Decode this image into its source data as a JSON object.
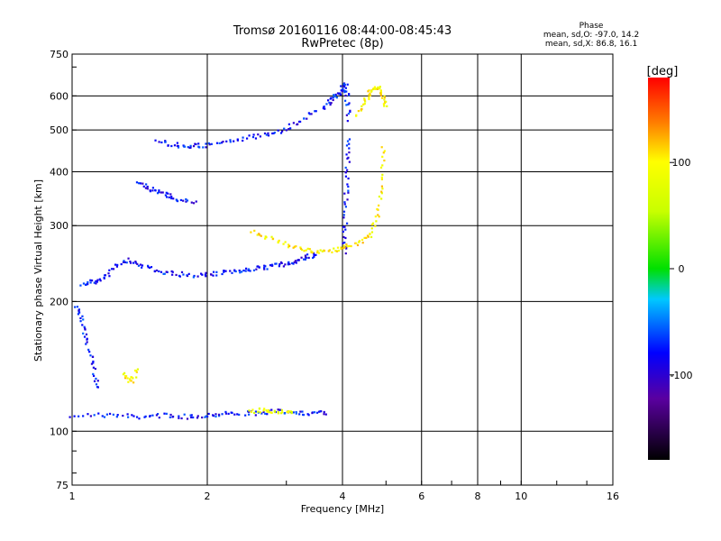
{
  "header": {
    "title_line1": "Tromsø 20160116 08:44:00-08:45:43",
    "title_line2": "RwPretec (8p)",
    "phase_heading": "Phase",
    "phase_o": "mean, sd,O: -97.0, 14.2",
    "phase_x": "mean, sd,X: 86.8, 16.1"
  },
  "colorbar": {
    "label": "[deg]",
    "ticks": [
      "100",
      "0",
      "-100"
    ],
    "tick_values": [
      100,
      0,
      -100
    ],
    "range": [
      -180,
      180
    ]
  },
  "chart_data": {
    "type": "scatter",
    "xlabel": "Frequency [MHz]",
    "ylabel": "Stationary phase Virtual Height [km]",
    "x_scale": "log",
    "y_scale": "log",
    "xlim": [
      1,
      16
    ],
    "ylim": [
      75,
      750
    ],
    "grid": true,
    "x_ticks": [
      1,
      2,
      4,
      6,
      8,
      10,
      16
    ],
    "x_tick_labels": [
      "1",
      "2",
      "4",
      "6",
      "8",
      "10",
      "16"
    ],
    "y_ticks": [
      75,
      100,
      200,
      300,
      400,
      500,
      600,
      750
    ],
    "y_tick_labels": [
      "75",
      "100",
      "200",
      "300",
      "400",
      "500",
      "600",
      "750"
    ],
    "traces": [
      {
        "freq": [
          1.0,
          1.2,
          1.4,
          1.6,
          1.8,
          2.0,
          2.2,
          2.5,
          2.8,
          3.1,
          3.4,
          3.7
        ],
        "height": [
          109,
          109,
          108,
          109,
          108,
          109,
          110,
          110,
          111,
          111,
          110,
          110
        ],
        "phase": -100
      },
      {
        "freq": [
          1.02,
          1.05,
          1.08,
          1.12,
          1.15
        ],
        "height": [
          195,
          180,
          160,
          140,
          125
        ],
        "phase": -95
      },
      {
        "freq": [
          1.05,
          1.12,
          1.2,
          1.3,
          1.4,
          1.55,
          1.7,
          1.9,
          2.1,
          2.3,
          2.5,
          2.7,
          2.9,
          3.1,
          3.3,
          3.5
        ],
        "height": [
          220,
          222,
          230,
          250,
          245,
          235,
          232,
          230,
          232,
          235,
          238,
          240,
          243,
          247,
          252,
          258
        ],
        "phase": -100
      },
      {
        "freq": [
          1.4,
          1.5,
          1.6,
          1.7,
          1.9
        ],
        "height": [
          375,
          365,
          355,
          345,
          340
        ],
        "phase": -100
      },
      {
        "freq": [
          1.55,
          1.7,
          1.85,
          2.0,
          2.3,
          2.6,
          2.9,
          3.2,
          3.5
        ],
        "height": [
          470,
          462,
          458,
          462,
          472,
          485,
          498,
          520,
          560
        ],
        "phase": -100
      },
      {
        "freq": [
          3.6,
          3.8,
          3.95,
          4.05,
          4.1,
          4.12
        ],
        "height": [
          560,
          590,
          610,
          640,
          600,
          520
        ],
        "phase": -100
      },
      {
        "freq": [
          4.05,
          4.05,
          4.08,
          4.1,
          4.12
        ],
        "height": [
          260,
          300,
          360,
          420,
          480
        ],
        "phase": -100
      },
      {
        "freq": [
          2.5,
          2.8,
          3.1,
          3.4,
          3.7,
          4.0,
          4.3,
          4.6,
          4.8,
          4.9,
          4.95
        ],
        "height": [
          290,
          280,
          268,
          262,
          262,
          266,
          272,
          285,
          320,
          380,
          470
        ],
        "phase": 100
      },
      {
        "freq": [
          4.3,
          4.5,
          4.65,
          4.8,
          4.9,
          5.0
        ],
        "height": [
          540,
          590,
          620,
          630,
          600,
          560
        ],
        "phase": 100
      },
      {
        "freq": [
          1.3,
          1.35,
          1.4
        ],
        "height": [
          135,
          130,
          140
        ],
        "phase": 100
      },
      {
        "freq": [
          2.5,
          2.7,
          2.9,
          3.1
        ],
        "height": [
          111,
          112,
          111,
          110
        ],
        "phase": 80
      }
    ]
  }
}
